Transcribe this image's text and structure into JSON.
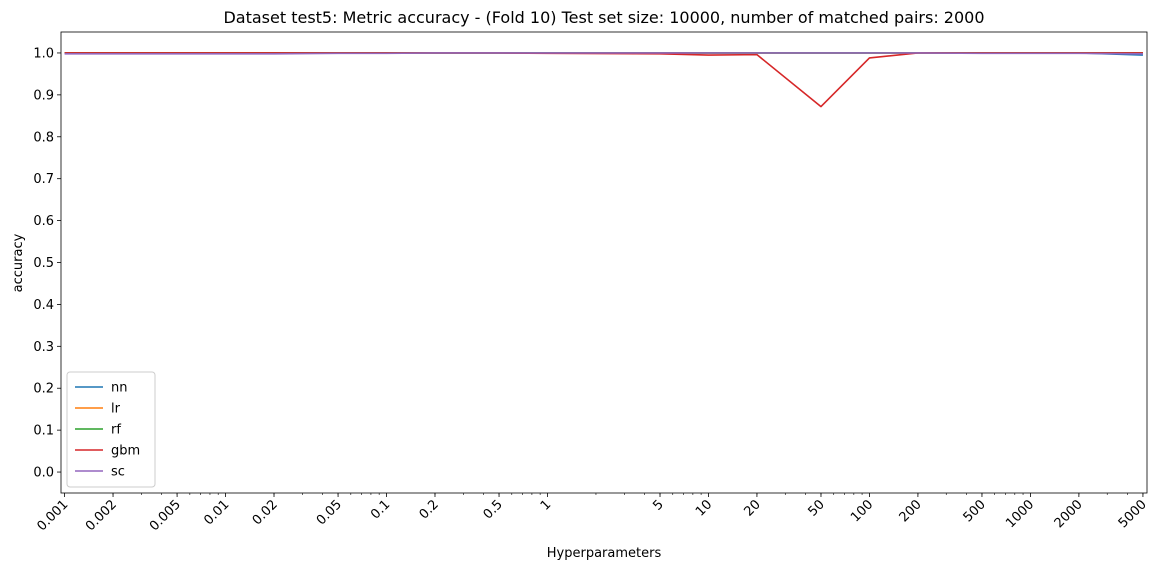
{
  "chart_data": {
    "type": "line",
    "title": "Dataset test5: Metric accuracy - (Fold 10) Test set size: 10000, number of matched pairs: 2000",
    "xlabel": "Hyperparameters",
    "ylabel": "accuracy",
    "xscale": "log",
    "xlim": [
      0.00095,
      5300
    ],
    "ylim": [
      -0.05,
      1.05
    ],
    "x_ticks": [
      0.001,
      0.002,
      0.005,
      0.01,
      0.02,
      0.05,
      0.1,
      0.2,
      0.5,
      1,
      5,
      10,
      20,
      50,
      100,
      200,
      500,
      1000,
      2000,
      5000
    ],
    "x_tick_labels": [
      "0.001",
      "0.002",
      "0.005",
      "0.01",
      "0.02",
      "0.05",
      "0.1",
      "0.2",
      "0.5",
      "1",
      "5",
      "10",
      "20",
      "50",
      "100",
      "200",
      "500",
      "1000",
      "2000",
      "5000"
    ],
    "y_ticks": [
      0.0,
      0.1,
      0.2,
      0.3,
      0.4,
      0.5,
      0.6,
      0.7,
      0.8,
      0.9,
      1.0
    ],
    "y_tick_labels": [
      "0.0",
      "0.1",
      "0.2",
      "0.3",
      "0.4",
      "0.5",
      "0.6",
      "0.7",
      "0.8",
      "0.9",
      "1.0"
    ],
    "x": [
      0.001,
      0.002,
      0.005,
      0.01,
      0.02,
      0.05,
      0.1,
      0.2,
      0.5,
      1,
      5,
      10,
      20,
      50,
      100,
      200,
      500,
      1000,
      2000,
      5000
    ],
    "series": [
      {
        "name": "nn",
        "color": "#1f77b4",
        "values": [
          1.0,
          1.0,
          1.0,
          1.0,
          1.0,
          1.0,
          1.0,
          1.0,
          1.0,
          1.0,
          1.0,
          1.0,
          1.0,
          1.0,
          1.0,
          1.0,
          1.0,
          1.0,
          1.0,
          0.995
        ]
      },
      {
        "name": "lr",
        "color": "#ff7f0e",
        "values": [
          1.0,
          1.0,
          1.0,
          1.0,
          1.0,
          1.0,
          1.0,
          1.0,
          1.0,
          1.0,
          1.0,
          1.0,
          1.0,
          1.0,
          1.0,
          1.0,
          1.0,
          1.0,
          1.0,
          1.0
        ]
      },
      {
        "name": "rf",
        "color": "#2ca02c",
        "values": [
          1.0,
          1.0,
          1.0,
          1.0,
          1.0,
          1.0,
          1.0,
          1.0,
          1.0,
          1.0,
          1.0,
          1.0,
          1.0,
          1.0,
          1.0,
          1.0,
          1.0,
          1.0,
          1.0,
          1.0
        ]
      },
      {
        "name": "gbm",
        "color": "#d62728",
        "values": [
          1.0,
          1.0,
          1.0,
          1.0,
          1.0,
          1.0,
          1.0,
          1.0,
          1.0,
          0.999,
          0.998,
          0.995,
          0.996,
          0.872,
          0.988,
          1.0,
          1.0,
          1.0,
          1.0,
          1.0
        ]
      },
      {
        "name": "sc",
        "color": "#9467bd",
        "values": [
          0.998,
          0.998,
          0.998,
          0.998,
          0.998,
          0.999,
          0.999,
          1.0,
          1.0,
          1.0,
          1.0,
          1.0,
          1.0,
          1.0,
          1.0,
          1.0,
          0.999,
          0.999,
          0.999,
          0.998
        ]
      }
    ],
    "legend": "lower-left",
    "grid": false
  }
}
